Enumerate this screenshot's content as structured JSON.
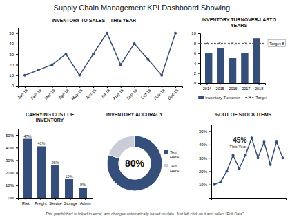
{
  "title": "Supply Chain Management KPI Dashboard Showing...",
  "annotations": [
    "This graph/chart is linked to excel, and changes automatically based on data. Just left click on it and select \"Edit Data\"."
  ],
  "chart_data": [
    {
      "type": "line",
      "title": "INVENTORY TO SALES – THIS YEAR",
      "categories": [
        "Jan-18",
        "Feb-18",
        "Mar-18",
        "Apr-18",
        "May-18",
        "Jun-18",
        "Jul-18",
        "Aug-18",
        "Sep-18",
        "Oct-18",
        "Nov-18",
        "Dec-18"
      ],
      "values": [
        10,
        15,
        20,
        30,
        10,
        30,
        50,
        20,
        40,
        25,
        10,
        50
      ],
      "color": "#354f7a",
      "marker": "circle",
      "ylim": [
        0,
        55
      ],
      "yticks": [
        0,
        10,
        20,
        30,
        40,
        50
      ],
      "grid": false
    },
    {
      "type": "bar",
      "title": "INVENTORY TURNOVER-LAST 5\nYEARS",
      "categories": [
        "2014",
        "2015",
        "2016",
        "2017",
        "2018"
      ],
      "series": [
        {
          "name": "Inventory Turnover",
          "color": "#354f7a",
          "values": [
            6,
            7,
            5,
            6,
            9
          ]
        }
      ],
      "target": {
        "name": "Target",
        "value": 8,
        "label": "Target 8",
        "color": "#555555",
        "line_style": "dashed",
        "marker": "x"
      },
      "ylim": [
        0,
        10
      ],
      "yticks": [
        0,
        2,
        4,
        6,
        8,
        10
      ],
      "grid": false,
      "legend": "bottom"
    },
    {
      "type": "bar",
      "title": "CARRYING COST OF\nINVENTORY",
      "categories": [
        "Risk",
        "Freight",
        "Service",
        "Storage",
        "Admin"
      ],
      "values": [
        47,
        41,
        26,
        15,
        8
      ],
      "value_labels": [
        "47%",
        "41%",
        "26%",
        "15%",
        "8%"
      ],
      "data_labels": true,
      "color": "#354f7a",
      "ylim": [
        0,
        55
      ],
      "yticks": [
        {
          "value": 0,
          "label": "0%"
        },
        {
          "value": 10,
          "label": "10%"
        },
        {
          "value": 20,
          "label": "20%"
        },
        {
          "value": 30,
          "label": "30%"
        },
        {
          "value": 40,
          "label": "40%"
        },
        {
          "value": 50,
          "label": "50%"
        }
      ],
      "grid": false
    },
    {
      "type": "donut",
      "title": "INVENTORY ACCURACY",
      "categories": [
        "Text\nHere",
        "Text\nHere"
      ],
      "values": [
        80,
        20
      ],
      "colors": [
        "#354f7a",
        "#c8cdd8"
      ],
      "annotations": [
        "80%"
      ],
      "legend": "right"
    },
    {
      "type": "line",
      "title": "%OUT OF STOCK ITEMS",
      "categories": [
        null,
        null,
        null,
        null,
        null,
        null,
        null,
        null,
        null,
        null,
        null,
        null
      ],
      "values": [
        10,
        12,
        20,
        32,
        22,
        32,
        45,
        30,
        42,
        25,
        42,
        30
      ],
      "color": "#354f7a",
      "marker": "circle",
      "ylim": [
        0,
        55
      ],
      "yticks": [
        {
          "value": 10,
          "label": "10%"
        },
        {
          "value": 20,
          "label": "20%"
        },
        {
          "value": 30,
          "label": "30%"
        },
        {
          "value": 40,
          "label": "40%"
        },
        {
          "value": 50,
          "label": "50%"
        }
      ],
      "tick_labels": "y",
      "grid": false,
      "annotations": [
        "45%",
        "This Year"
      ]
    }
  ]
}
